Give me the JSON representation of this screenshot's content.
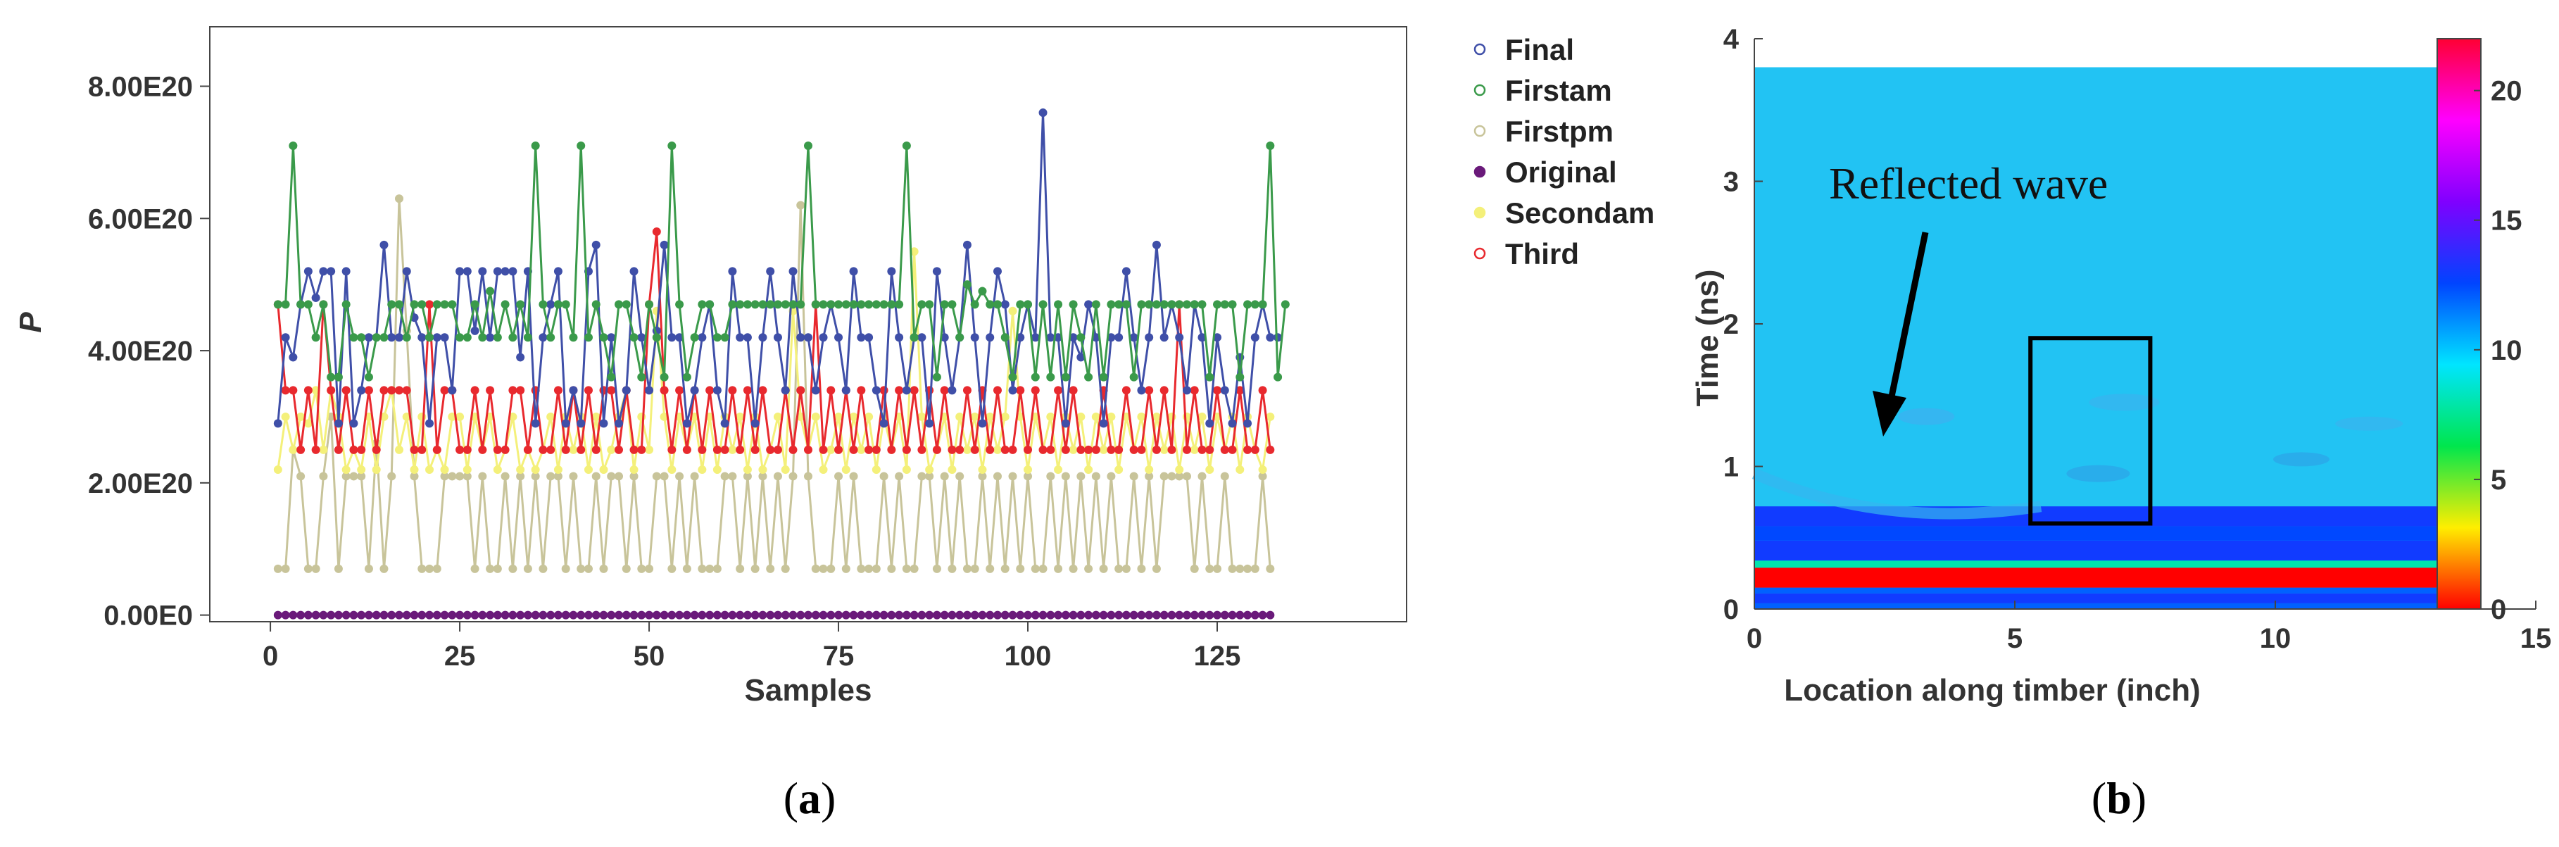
{
  "chart_data": [
    {
      "type": "line",
      "caption": "a",
      "xlabel": "Samples",
      "ylabel": "P",
      "xticks": [
        "0",
        "25",
        "50",
        "75",
        "100",
        "125"
      ],
      "yticks": [
        "0.00E0",
        "2.00E20",
        "4.00E20",
        "6.00E20",
        "8.00E20"
      ],
      "xlim": [
        -8,
        150
      ],
      "ylim": [
        -1e+19,
        8.9e+20
      ],
      "legend_position": "right",
      "series": [
        {
          "name": "Final",
          "color": "#3f4fa8",
          "values": [
            2.9e+20,
            4.2e+20,
            3.9e+20,
            4.7e+20,
            5.2e+20,
            4.8e+20,
            5.2e+20,
            5.2e+20,
            2.9e+20,
            5.2e+20,
            2.9e+20,
            3.4e+20,
            4.2e+20,
            4.2e+20,
            5.6e+20,
            4.2e+20,
            4.2e+20,
            5.2e+20,
            4.5e+20,
            4.2e+20,
            2.9e+20,
            4.2e+20,
            4.2e+20,
            3.4e+20,
            5.2e+20,
            5.2e+20,
            4.3e+20,
            5.2e+20,
            4.2e+20,
            5.2e+20,
            5.2e+20,
            5.2e+20,
            3.9e+20,
            5.2e+20,
            2.9e+20,
            4.2e+20,
            4.7e+20,
            5.2e+20,
            2.9e+20,
            3.4e+20,
            2.9e+20,
            5.2e+20,
            5.6e+20,
            2.9e+20,
            4.2e+20,
            2.9e+20,
            3.4e+20,
            5.2e+20,
            4.2e+20,
            3.4e+20,
            4.3e+20,
            5.6e+20,
            4.2e+20,
            4.2e+20,
            2.9e+20,
            3.4e+20,
            4.2e+20,
            4.7e+20,
            3.4e+20,
            2.9e+20,
            5.2e+20,
            4.2e+20,
            4.2e+20,
            2.9e+20,
            4.2e+20,
            5.2e+20,
            4.2e+20,
            3.4e+20,
            5.2e+20,
            4.2e+20,
            4.2e+20,
            3.4e+20,
            4.2e+20,
            4.7e+20,
            4.2e+20,
            3.4e+20,
            5.2e+20,
            4.2e+20,
            4.2e+20,
            3.4e+20,
            2.9e+20,
            5.2e+20,
            4.2e+20,
            3.4e+20,
            4.2e+20,
            4.2e+20,
            2.9e+20,
            5.2e+20,
            4.2e+20,
            3.4e+20,
            4.2e+20,
            5.6e+20,
            4.2e+20,
            2.9e+20,
            4.2e+20,
            5.2e+20,
            4.7e+20,
            3.4e+20,
            4.2e+20,
            4.7e+20,
            4.2e+20,
            7.6e+20,
            4.2e+20,
            4.2e+20,
            2.9e+20,
            4.2e+20,
            3.9e+20,
            4.7e+20,
            4.2e+20,
            2.9e+20,
            4.2e+20,
            4.2e+20,
            5.2e+20,
            4.2e+20,
            3.4e+20,
            4.2e+20,
            5.6e+20,
            4.2e+20,
            4.7e+20,
            4.2e+20,
            3.4e+20,
            4.7e+20,
            4.2e+20,
            2.9e+20,
            4.2e+20,
            3.4e+20,
            2.9e+20,
            3.9e+20,
            2.9e+20,
            4.2e+20,
            4.7e+20,
            4.2e+20,
            4.2e+20
          ]
        },
        {
          "name": "Firstam",
          "color": "#3a9a4a",
          "values": [
            4.7e+20,
            4.7e+20,
            7.1e+20,
            4.7e+20,
            4.7e+20,
            4.2e+20,
            4.7e+20,
            3.6e+20,
            3.6e+20,
            4.7e+20,
            4.2e+20,
            4.2e+20,
            3.6e+20,
            4.2e+20,
            4.2e+20,
            4.7e+20,
            4.7e+20,
            4.2e+20,
            4.7e+20,
            4.7e+20,
            4.2e+20,
            4.7e+20,
            4.7e+20,
            4.7e+20,
            4.2e+20,
            4.2e+20,
            4.7e+20,
            4.2e+20,
            4.9e+20,
            4.2e+20,
            4.7e+20,
            4.2e+20,
            4.7e+20,
            4.2e+20,
            7.1e+20,
            4.7e+20,
            4.2e+20,
            4.7e+20,
            4.7e+20,
            4.2e+20,
            7.1e+20,
            4.2e+20,
            4.7e+20,
            4.2e+20,
            3.6e+20,
            4.7e+20,
            4.7e+20,
            4.2e+20,
            3.6e+20,
            4.7e+20,
            4.2e+20,
            3.6e+20,
            7.1e+20,
            4.7e+20,
            3.6e+20,
            4.2e+20,
            4.7e+20,
            4.7e+20,
            4.2e+20,
            4.2e+20,
            4.7e+20,
            4.7e+20,
            4.7e+20,
            4.7e+20,
            4.7e+20,
            4.7e+20,
            4.7e+20,
            4.7e+20,
            4.7e+20,
            4.7e+20,
            7.1e+20,
            4.7e+20,
            4.7e+20,
            4.7e+20,
            4.7e+20,
            4.7e+20,
            4.7e+20,
            4.7e+20,
            4.7e+20,
            4.7e+20,
            4.7e+20,
            4.7e+20,
            4.7e+20,
            7.1e+20,
            4.2e+20,
            4.7e+20,
            4.7e+20,
            3.6e+20,
            4.7e+20,
            4.7e+20,
            4.2e+20,
            5e+20,
            4.7e+20,
            4.9e+20,
            4.7e+20,
            4.7e+20,
            4.2e+20,
            3.6e+20,
            4.7e+20,
            4.7e+20,
            3.6e+20,
            4.7e+20,
            3.6e+20,
            4.7e+20,
            3.6e+20,
            4.7e+20,
            4.2e+20,
            3.6e+20,
            4.7e+20,
            3.6e+20,
            4.7e+20,
            4.7e+20,
            4.7e+20,
            3.6e+20,
            4.7e+20,
            4.7e+20,
            4.7e+20,
            4.7e+20,
            4.7e+20,
            4.7e+20,
            4.7e+20,
            4.7e+20,
            4.7e+20,
            3.6e+20,
            4.7e+20,
            4.7e+20,
            4.7e+20,
            3.6e+20,
            4.7e+20,
            4.7e+20,
            4.7e+20,
            7.1e+20,
            3.6e+20,
            4.7e+20
          ]
        },
        {
          "name": "Firstpm",
          "color": "#c8c49a",
          "values": [
            7e+19,
            7e+19,
            2.5e+20,
            2.1e+20,
            7e+19,
            7e+19,
            2.1e+20,
            3e+20,
            7e+19,
            2.1e+20,
            2.1e+20,
            2.1e+20,
            7e+19,
            2.6e+20,
            7e+19,
            2.1e+20,
            6.3e+20,
            4.3e+20,
            2.1e+20,
            7e+19,
            7e+19,
            7e+19,
            2.1e+20,
            2.1e+20,
            2.1e+20,
            2.1e+20,
            7e+19,
            2.1e+20,
            7e+19,
            7e+19,
            2.1e+20,
            7e+19,
            2.1e+20,
            7e+19,
            2.1e+20,
            7e+19,
            2.1e+20,
            2.1e+20,
            7e+19,
            2.1e+20,
            7e+19,
            7e+19,
            2.1e+20,
            7e+19,
            2.1e+20,
            2.1e+20,
            7e+19,
            2.1e+20,
            7e+19,
            7e+19,
            2.1e+20,
            2.1e+20,
            7e+19,
            2.1e+20,
            7e+19,
            2.1e+20,
            7e+19,
            7e+19,
            7e+19,
            2.1e+20,
            2.1e+20,
            7e+19,
            2.1e+20,
            7e+19,
            2.1e+20,
            7e+19,
            2.1e+20,
            7e+19,
            2.1e+20,
            6.2e+20,
            2.1e+20,
            7e+19,
            7e+19,
            7e+19,
            2.1e+20,
            7e+19,
            2.1e+20,
            7e+19,
            7e+19,
            7e+19,
            2.1e+20,
            7e+19,
            2.1e+20,
            7e+19,
            7e+19,
            2.1e+20,
            2.1e+20,
            7e+19,
            2.1e+20,
            7e+19,
            2.1e+20,
            7e+19,
            7e+19,
            2.1e+20,
            7e+19,
            2.1e+20,
            7e+19,
            2.1e+20,
            7e+19,
            2.1e+20,
            7e+19,
            7e+19,
            2.1e+20,
            7e+19,
            2.1e+20,
            7e+19,
            2.1e+20,
            7e+19,
            2.1e+20,
            7e+19,
            2.1e+20,
            7e+19,
            7e+19,
            2.1e+20,
            7e+19,
            2.1e+20,
            7e+19,
            2.1e+20,
            2.1e+20,
            2.1e+20,
            2.1e+20,
            7e+19,
            2.1e+20,
            7e+19,
            7e+19,
            2.1e+20,
            7e+19,
            7e+19,
            7e+19,
            7e+19,
            2.1e+20,
            7e+19
          ]
        },
        {
          "name": "Original",
          "color": "#6a1a7a",
          "values": [
            0,
            0,
            0,
            0,
            0,
            0,
            0,
            0,
            0,
            0,
            0,
            0,
            0,
            0,
            0,
            0,
            0,
            0,
            0,
            0,
            0,
            0,
            0,
            0,
            0,
            0,
            0,
            0,
            0,
            0,
            0,
            0,
            0,
            0,
            0,
            0,
            0,
            0,
            0,
            0,
            0,
            0,
            0,
            0,
            0,
            0,
            0,
            0,
            0,
            0,
            0,
            0,
            0,
            0,
            0,
            0,
            0,
            0,
            0,
            0,
            0,
            0,
            0,
            0,
            0,
            0,
            0,
            0,
            0,
            0,
            0,
            0,
            0,
            0,
            0,
            0,
            0,
            0,
            0,
            0,
            0,
            0,
            0,
            0,
            0,
            0,
            0,
            0,
            0,
            0,
            0,
            0,
            0,
            0,
            0,
            0,
            0,
            0,
            0,
            0,
            0,
            0,
            0,
            0,
            0,
            0,
            0,
            0,
            0,
            0,
            0,
            0,
            0,
            0,
            0,
            0,
            0,
            0,
            0,
            0,
            0,
            0,
            0,
            0,
            0,
            0,
            0,
            0,
            0,
            0,
            0,
            0
          ]
        },
        {
          "name": "Secondam",
          "color": "#f4f07a",
          "values": [
            2.2e+20,
            3e+20,
            2.5e+20,
            3e+20,
            2.9e+20,
            3.4e+20,
            2.5e+20,
            3.4e+20,
            3e+20,
            2.2e+20,
            2.5e+20,
            2.2e+20,
            3e+20,
            2.2e+20,
            3e+20,
            3.4e+20,
            2.5e+20,
            3e+20,
            2.2e+20,
            3e+20,
            2.2e+20,
            2.5e+20,
            2.2e+20,
            3e+20,
            3e+20,
            2.2e+20,
            3e+20,
            2.5e+20,
            3e+20,
            2.2e+20,
            2.5e+20,
            3e+20,
            2.2e+20,
            2.5e+20,
            2.2e+20,
            2.5e+20,
            3e+20,
            2.2e+20,
            3e+20,
            2.5e+20,
            3e+20,
            2.2e+20,
            3e+20,
            2.2e+20,
            2.5e+20,
            3e+20,
            3.4e+20,
            2.2e+20,
            3e+20,
            2.5e+20,
            4.6e+20,
            3e+20,
            2.2e+20,
            3e+20,
            2.5e+20,
            3e+20,
            2.2e+20,
            3e+20,
            2.2e+20,
            3e+20,
            2.5e+20,
            3e+20,
            2.2e+20,
            3e+20,
            2.2e+20,
            2.5e+20,
            3e+20,
            2.2e+20,
            4.6e+20,
            3e+20,
            2.5e+20,
            3e+20,
            2.2e+20,
            2.5e+20,
            3e+20,
            2.2e+20,
            3e+20,
            2.5e+20,
            3e+20,
            2.2e+20,
            3e+20,
            2.5e+20,
            3e+20,
            2.2e+20,
            5.5e+20,
            3e+20,
            2.2e+20,
            2.5e+20,
            3e+20,
            2.2e+20,
            3e+20,
            2.5e+20,
            3e+20,
            2.2e+20,
            3e+20,
            2.5e+20,
            3e+20,
            4.6e+20,
            3e+20,
            2.2e+20,
            3e+20,
            2.5e+20,
            3e+20,
            2.2e+20,
            3e+20,
            2.5e+20,
            3e+20,
            2.2e+20,
            3e+20,
            2.5e+20,
            3e+20,
            2.2e+20,
            3e+20,
            2.5e+20,
            3e+20,
            2.2e+20,
            3e+20,
            2.5e+20,
            3e+20,
            2.2e+20,
            3e+20,
            2.5e+20,
            3e+20,
            2.2e+20,
            3e+20,
            2.5e+20,
            3e+20,
            2.2e+20,
            3e+20,
            2.5e+20,
            2.2e+20,
            3e+20
          ]
        },
        {
          "name": "Third",
          "color": "#e8292e",
          "values": [
            4.7e+20,
            3.4e+20,
            3.4e+20,
            2.5e+20,
            3.4e+20,
            2.5e+20,
            4.7e+20,
            3.4e+20,
            2.5e+20,
            3.4e+20,
            2.5e+20,
            2.5e+20,
            3.4e+20,
            2.5e+20,
            3.4e+20,
            3.4e+20,
            3.4e+20,
            3.4e+20,
            2.5e+20,
            2.5e+20,
            4.7e+20,
            2.5e+20,
            3.4e+20,
            3.4e+20,
            2.5e+20,
            2.5e+20,
            3.4e+20,
            2.5e+20,
            3.4e+20,
            2.5e+20,
            2.5e+20,
            3.4e+20,
            3.4e+20,
            2.5e+20,
            3.4e+20,
            2.5e+20,
            2.5e+20,
            3.4e+20,
            2.5e+20,
            3.4e+20,
            2.5e+20,
            3.4e+20,
            2.5e+20,
            3.4e+20,
            3.4e+20,
            2.5e+20,
            3.4e+20,
            2.5e+20,
            2.5e+20,
            4.7e+20,
            5.8e+20,
            3.4e+20,
            2.5e+20,
            3.4e+20,
            2.5e+20,
            3.4e+20,
            2.5e+20,
            3.4e+20,
            2.5e+20,
            2.5e+20,
            3.4e+20,
            2.5e+20,
            3.4e+20,
            2.5e+20,
            3.4e+20,
            2.5e+20,
            2.5e+20,
            3.4e+20,
            2.5e+20,
            3.4e+20,
            2.5e+20,
            4.7e+20,
            2.5e+20,
            3.4e+20,
            2.5e+20,
            3.4e+20,
            2.5e+20,
            3.4e+20,
            2.5e+20,
            2.5e+20,
            3.4e+20,
            2.5e+20,
            3.4e+20,
            2.5e+20,
            3.4e+20,
            2.5e+20,
            3.4e+20,
            2.5e+20,
            3.4e+20,
            2.5e+20,
            2.5e+20,
            3.4e+20,
            2.5e+20,
            3.4e+20,
            2.5e+20,
            3.4e+20,
            2.5e+20,
            2.5e+20,
            3.4e+20,
            2.5e+20,
            3.4e+20,
            2.5e+20,
            2.5e+20,
            3.4e+20,
            2.5e+20,
            3.4e+20,
            2.5e+20,
            2.5e+20,
            2.5e+20,
            3.4e+20,
            2.5e+20,
            2.5e+20,
            3.4e+20,
            2.5e+20,
            2.5e+20,
            3.4e+20,
            2.5e+20,
            3.4e+20,
            2.5e+20,
            4.7e+20,
            2.5e+20,
            3.4e+20,
            2.5e+20,
            2.5e+20,
            3.4e+20,
            2.5e+20,
            2.5e+20,
            3.4e+20,
            2.5e+20,
            2.5e+20,
            3.4e+20,
            2.5e+20
          ]
        }
      ]
    },
    {
      "type": "heatmap",
      "caption": "b",
      "xlabel": "Location along timber (inch)",
      "ylabel": "Time (ns)",
      "xticks": [
        "0",
        "5",
        "10",
        "15"
      ],
      "yticks": [
        "0",
        "1",
        "2",
        "3",
        "4"
      ],
      "xlim": [
        0,
        15
      ],
      "ylim": [
        0,
        4
      ],
      "data_extent": {
        "x": [
          0,
          13.3
        ],
        "t": [
          0,
          3.8
        ]
      },
      "colorbar": {
        "ticks": [
          "0",
          "5",
          "10",
          "15",
          "20"
        ],
        "range": [
          0,
          22
        ],
        "colors": [
          "#ff0000",
          "#ffee00",
          "#00e64d",
          "#00e5ff",
          "#0044ff",
          "#8000ff",
          "#ff00ff",
          "#ff0033"
        ]
      },
      "annotation": "Reflected wave",
      "highlight_box": {
        "x": [
          5.3,
          7.6
        ],
        "t": [
          0.6,
          1.9
        ]
      },
      "bands": [
        {
          "t": [
            0.0,
            0.04
          ],
          "value": 12
        },
        {
          "t": [
            0.04,
            0.11
          ],
          "value": 13
        },
        {
          "t": [
            0.11,
            0.15
          ],
          "value": 12
        },
        {
          "t": [
            0.15,
            0.29
          ],
          "value": 0
        },
        {
          "t": [
            0.29,
            0.34
          ],
          "value": 8
        },
        {
          "t": [
            0.34,
            0.48
          ],
          "value": 13
        },
        {
          "t": [
            0.48,
            0.58
          ],
          "value": 12.5
        },
        {
          "t": [
            0.58,
            0.72
          ],
          "value": 13
        }
      ]
    }
  ],
  "captions": {
    "a_label": "a",
    "b_label": "b"
  }
}
